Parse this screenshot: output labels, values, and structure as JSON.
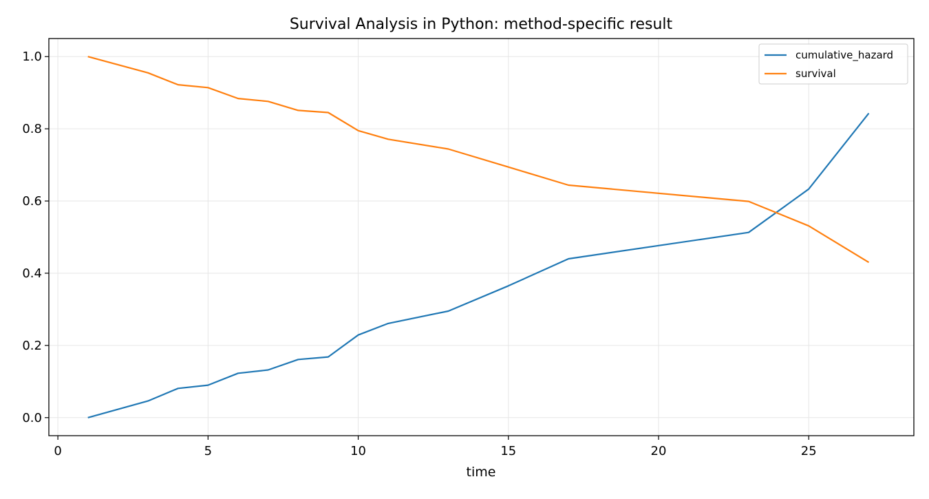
{
  "chart_data": {
    "type": "line",
    "title": "Survival Analysis in Python: method-specific result",
    "xlabel": "time",
    "ylabel": "",
    "xlim": [
      -0.3,
      28.5
    ],
    "ylim": [
      -0.05,
      1.05
    ],
    "xticks": [
      0,
      5,
      10,
      15,
      20,
      25
    ],
    "yticks": [
      0.0,
      0.2,
      0.4,
      0.6,
      0.8,
      1.0
    ],
    "xtick_labels": [
      "0",
      "5",
      "10",
      "15",
      "20",
      "25"
    ],
    "ytick_labels": [
      "0.0",
      "0.2",
      "0.4",
      "0.6",
      "0.8",
      "1.0"
    ],
    "grid": true,
    "legend_position": "top-right",
    "x": [
      1,
      3,
      4,
      5,
      6,
      7,
      8,
      9,
      10,
      11,
      13,
      15,
      17,
      23,
      25,
      27
    ],
    "series": [
      {
        "name": "cumulative_hazard",
        "color": "#1f77b4",
        "values": [
          0.0,
          0.046,
          0.081,
          0.09,
          0.123,
          0.132,
          0.161,
          0.168,
          0.229,
          0.261,
          0.295,
          0.365,
          0.44,
          0.513,
          0.633,
          0.843
        ]
      },
      {
        "name": "survival",
        "color": "#ff7f0e",
        "values": [
          1.0,
          0.955,
          0.922,
          0.914,
          0.884,
          0.876,
          0.851,
          0.845,
          0.795,
          0.771,
          0.744,
          0.694,
          0.644,
          0.599,
          0.531,
          0.43
        ]
      }
    ]
  }
}
